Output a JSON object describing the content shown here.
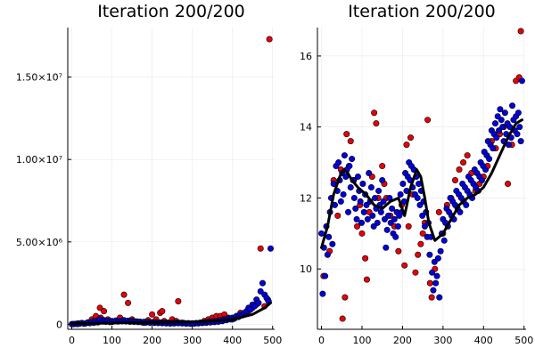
{
  "colors": {
    "red": "#e8000b",
    "blue": "#0000e0",
    "fit": "#000000"
  },
  "chart_data": [
    {
      "type": "scatter",
      "title": "Iteration 200/200",
      "xlim": [
        -10,
        505
      ],
      "ylim": [
        -300000,
        18000000
      ],
      "xticks": [
        0,
        100,
        200,
        300,
        400,
        500
      ],
      "xtick_labels": [
        "0",
        "100",
        "200",
        "300",
        "400",
        "500"
      ],
      "yticks": [
        0,
        5000000,
        10000000,
        15000000
      ],
      "ytick_labels": [
        "0",
        "5.00×10⁶",
        "1.00×10⁷",
        "1.50×10⁷"
      ],
      "grid": true,
      "series": [
        {
          "color": "red",
          "x": [
            2,
            15,
            25,
            40,
            50,
            55,
            60,
            65,
            70,
            72,
            80,
            90,
            100,
            110,
            120,
            130,
            140,
            150,
            165,
            180,
            190,
            200,
            210,
            220,
            225,
            230,
            240,
            250,
            260,
            265,
            275,
            285,
            300,
            320,
            330,
            340,
            350,
            360,
            370,
            380,
            390,
            400,
            410,
            420,
            430,
            440,
            450,
            460,
            470,
            480,
            488,
            492
          ],
          "y": [
            20000,
            50000,
            80000,
            120000,
            300000,
            200000,
            500000,
            250000,
            1000000,
            400000,
            800000,
            300000,
            150000,
            200000,
            400000,
            1800000,
            1300000,
            300000,
            150000,
            100000,
            250000,
            600000,
            300000,
            700000,
            800000,
            200000,
            100000,
            300000,
            200000,
            1400000,
            100000,
            50000,
            50000,
            100000,
            200000,
            300000,
            400000,
            500000,
            500000,
            600000,
            400000,
            300000,
            500000,
            700000,
            600000,
            800000,
            1000000,
            1200000,
            4600000,
            1100000,
            1500000,
            17300000
          ]
        },
        {
          "color": "blue",
          "x": [
            0,
            5,
            10,
            15,
            20,
            25,
            30,
            35,
            40,
            45,
            50,
            55,
            60,
            65,
            70,
            75,
            80,
            85,
            90,
            95,
            100,
            105,
            110,
            115,
            120,
            125,
            130,
            135,
            140,
            145,
            150,
            155,
            160,
            165,
            170,
            175,
            180,
            185,
            190,
            195,
            200,
            205,
            210,
            215,
            220,
            225,
            230,
            235,
            240,
            245,
            250,
            255,
            260,
            265,
            270,
            275,
            280,
            285,
            290,
            295,
            300,
            305,
            310,
            315,
            320,
            325,
            330,
            335,
            340,
            345,
            350,
            355,
            360,
            365,
            370,
            375,
            380,
            385,
            390,
            395,
            400,
            405,
            410,
            415,
            420,
            425,
            430,
            435,
            440,
            445,
            450,
            455,
            460,
            465,
            470,
            475,
            480,
            485,
            490,
            495
          ],
          "y": [
            10000,
            20000,
            30000,
            20000,
            50000,
            80000,
            40000,
            60000,
            100000,
            70000,
            150000,
            90000,
            200000,
            120000,
            300000,
            180000,
            250000,
            160000,
            220000,
            140000,
            200000,
            180000,
            230000,
            170000,
            210000,
            190000,
            250000,
            180000,
            220000,
            160000,
            200000,
            150000,
            180000,
            140000,
            160000,
            120000,
            150000,
            110000,
            140000,
            100000,
            130000,
            90000,
            120000,
            80000,
            110000,
            70000,
            100000,
            60000,
            90000,
            50000,
            80000,
            60000,
            100000,
            70000,
            90000,
            60000,
            80000,
            50000,
            70000,
            40000,
            60000,
            50000,
            80000,
            60000,
            100000,
            80000,
            120000,
            100000,
            150000,
            120000,
            180000,
            140000,
            200000,
            160000,
            250000,
            200000,
            300000,
            250000,
            350000,
            300000,
            400000,
            350000,
            500000,
            450000,
            600000,
            550000,
            700000,
            800000,
            1000000,
            900000,
            1200000,
            1100000,
            1500000,
            1300000,
            2000000,
            2500000,
            1800000,
            1600000,
            1400000,
            4600000
          ]
        }
      ],
      "fit": {
        "x": [
          0,
          50,
          100,
          150,
          200,
          250,
          300,
          350,
          400,
          450,
          480,
          495
        ],
        "y": [
          50000,
          60000,
          80000,
          100000,
          120000,
          130000,
          150000,
          200000,
          300000,
          600000,
          1000000,
          1300000
        ]
      }
    },
    {
      "type": "scatter",
      "title": "Iteration 200/200",
      "xlim": [
        -10,
        505
      ],
      "ylim": [
        8.3,
        16.8
      ],
      "xticks": [
        0,
        100,
        200,
        300,
        400,
        500
      ],
      "xtick_labels": [
        "0",
        "100",
        "200",
        "300",
        "400",
        "500"
      ],
      "yticks": [
        10,
        12,
        14,
        16
      ],
      "ytick_labels": [
        "10",
        "12",
        "14",
        "16"
      ],
      "grid": true,
      "series": [
        {
          "color": "red",
          "x": [
            5,
            20,
            30,
            40,
            48,
            52,
            58,
            62,
            68,
            72,
            80,
            88,
            95,
            100,
            108,
            112,
            118,
            125,
            130,
            135,
            140,
            150,
            155,
            160,
            170,
            180,
            190,
            198,
            205,
            210,
            215,
            220,
            225,
            232,
            238,
            245,
            250,
            255,
            262,
            268,
            272,
            280,
            290,
            300,
            310,
            320,
            330,
            340,
            350,
            360,
            370,
            380,
            390,
            400,
            410,
            420,
            430,
            440,
            450,
            460,
            470,
            480,
            488,
            492
          ],
          "y": [
            9.8,
            10.5,
            12.5,
            11.5,
            12.8,
            8.6,
            9.2,
            13.8,
            12.9,
            13.6,
            12.5,
            11.2,
            11.8,
            11.0,
            10.3,
            9.7,
            11.6,
            12.6,
            14.4,
            14.1,
            12.0,
            12.9,
            12.4,
            12.0,
            11.5,
            11.2,
            10.5,
            11.8,
            10.1,
            13.5,
            11.2,
            13.7,
            12.1,
            9.9,
            10.4,
            10.7,
            11.0,
            11.3,
            14.2,
            9.6,
            9.2,
            10.0,
            11.6,
            11.0,
            11.8,
            12.0,
            12.5,
            12.8,
            13.0,
            13.2,
            12.7,
            12.2,
            12.4,
            12.6,
            12.9,
            13.6,
            13.4,
            13.8,
            14.0,
            12.4,
            13.5,
            15.3,
            15.4,
            16.7
          ]
        },
        {
          "color": "blue",
          "x": [
            0,
            3,
            6,
            9,
            12,
            15,
            18,
            21,
            24,
            27,
            30,
            33,
            36,
            39,
            42,
            45,
            48,
            51,
            54,
            57,
            60,
            63,
            66,
            69,
            72,
            75,
            78,
            81,
            84,
            87,
            90,
            93,
            96,
            99,
            102,
            105,
            108,
            111,
            114,
            117,
            120,
            123,
            126,
            129,
            132,
            135,
            138,
            141,
            144,
            147,
            150,
            153,
            156,
            159,
            162,
            165,
            168,
            171,
            174,
            177,
            180,
            183,
            186,
            189,
            192,
            195,
            198,
            201,
            204,
            207,
            210,
            213,
            216,
            219,
            222,
            225,
            228,
            231,
            234,
            237,
            240,
            243,
            246,
            249,
            252,
            255,
            258,
            261,
            264,
            267,
            270,
            273,
            276,
            279,
            282,
            285,
            288,
            291,
            294,
            297,
            300,
            303,
            306,
            309,
            312,
            315,
            318,
            321,
            324,
            327,
            330,
            333,
            336,
            339,
            342,
            345,
            348,
            351,
            354,
            357,
            360,
            363,
            366,
            369,
            372,
            375,
            378,
            381,
            384,
            387,
            390,
            393,
            396,
            399,
            402,
            405,
            408,
            411,
            414,
            417,
            420,
            423,
            426,
            429,
            432,
            435,
            438,
            441,
            444,
            447,
            450,
            453,
            456,
            459,
            462,
            465,
            468,
            471,
            474,
            477,
            480,
            483,
            486,
            489,
            492,
            495
          ],
          "y": [
            11.0,
            9.3,
            10.6,
            9.8,
            11.2,
            10.4,
            10.9,
            11.6,
            12.0,
            10.7,
            12.4,
            11.8,
            12.9,
            12.2,
            13.0,
            12.5,
            11.9,
            12.7,
            12.1,
            13.2,
            12.6,
            12.8,
            11.6,
            12.9,
            12.3,
            13.1,
            12.5,
            12.0,
            11.7,
            11.4,
            12.6,
            12.2,
            11.9,
            11.3,
            12.4,
            11.6,
            12.1,
            11.8,
            11.4,
            12.7,
            11.9,
            12.3,
            11.5,
            11.2,
            12.0,
            11.7,
            11.3,
            12.2,
            11.8,
            11.6,
            12.5,
            11.9,
            11.4,
            10.6,
            11.1,
            11.5,
            12.0,
            11.3,
            11.7,
            11.0,
            11.4,
            10.9,
            11.6,
            11.2,
            11.5,
            12.1,
            11.6,
            12.4,
            11.9,
            12.7,
            12.2,
            12.6,
            13.0,
            12.5,
            12.9,
            12.3,
            12.8,
            12.1,
            12.6,
            12.0,
            12.4,
            11.8,
            12.2,
            11.5,
            11.9,
            11.2,
            11.6,
            10.9,
            11.3,
            10.4,
            10.9,
            9.9,
            9.4,
            10.2,
            9.6,
            9.8,
            10.3,
            9.2,
            10.5,
            11.0,
            11.4,
            10.8,
            11.3,
            11.7,
            11.2,
            11.6,
            12.0,
            11.5,
            11.9,
            11.4,
            11.8,
            12.2,
            11.7,
            12.1,
            11.6,
            12.0,
            12.4,
            11.9,
            12.3,
            11.8,
            12.2,
            12.6,
            12.1,
            12.5,
            12.0,
            12.4,
            12.8,
            12.3,
            12.7,
            12.2,
            12.6,
            13.0,
            12.5,
            12.9,
            13.3,
            12.8,
            13.2,
            13.6,
            13.1,
            13.5,
            13.9,
            13.4,
            13.8,
            14.1,
            13.7,
            14.3,
            13.9,
            14.5,
            14.2,
            14.0,
            13.6,
            14.4,
            13.8,
            14.1,
            13.5,
            14.0,
            13.7,
            14.6,
            14.2,
            13.9,
            14.3,
            13.8,
            14.4,
            14.0,
            13.6,
            15.3
          ]
        }
      ],
      "fit": {
        "x": [
          0,
          15,
          30,
          45,
          55,
          65,
          75,
          90,
          110,
          130,
          150,
          170,
          190,
          205,
          220,
          235,
          245,
          255,
          265,
          280,
          300,
          320,
          340,
          360,
          380,
          400,
          420,
          440,
          460,
          480,
          495
        ],
        "y": [
          10.6,
          11.2,
          12.1,
          12.6,
          12.8,
          12.7,
          12.5,
          12.3,
          12.1,
          11.8,
          11.7,
          11.9,
          12.0,
          11.5,
          12.3,
          12.8,
          12.6,
          12.0,
          11.3,
          10.8,
          11.0,
          11.4,
          11.8,
          12.0,
          12.1,
          12.3,
          12.7,
          13.2,
          13.7,
          14.1,
          14.2
        ]
      }
    }
  ]
}
